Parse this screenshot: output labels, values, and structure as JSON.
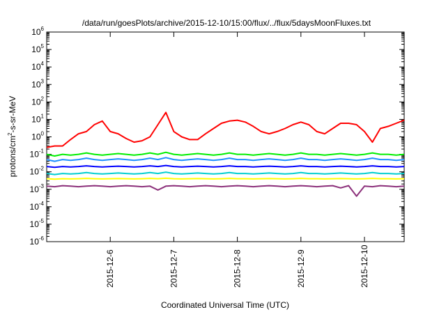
{
  "chart_data": {
    "type": "line",
    "title": "/data/run/goesPlots/archive/2015-12-10/15:00/flux/../flux/5daysMoonFluxes.txt",
    "xlabel": "Coordinated Universal Time (UTC)",
    "ylabel": {
      "prefix": "protons/cm",
      "superscript": "2",
      "suffix": "-s-sr-MeV"
    },
    "x_range": [
      "2015-12-05T00:00",
      "2015-12-10T15:00"
    ],
    "x_ticks": [
      "2015-12-6",
      "2015-12-7",
      "2015-12-8",
      "2015-12-9",
      "2015-12-10"
    ],
    "y_scale": "log",
    "ylim": [
      1e-06,
      1000000.0
    ],
    "y_ticks": [
      {
        "base": "10",
        "exp": "-6"
      },
      {
        "base": "10",
        "exp": "-5"
      },
      {
        "base": "10",
        "exp": "-4"
      },
      {
        "base": "10",
        "exp": "-3"
      },
      {
        "base": "10",
        "exp": "-2"
      },
      {
        "base": "10",
        "exp": "-1"
      },
      {
        "base": "10",
        "exp": "0"
      },
      {
        "base": "10",
        "exp": "1"
      },
      {
        "base": "10",
        "exp": "2"
      },
      {
        "base": "10",
        "exp": "3"
      },
      {
        "base": "10",
        "exp": "4"
      },
      {
        "base": "10",
        "exp": "5"
      },
      {
        "base": "10",
        "exp": "6"
      }
    ],
    "grid": false,
    "legend": "none",
    "x": [
      "2015-12-05T00:00",
      "2015-12-05T03:00",
      "2015-12-05T06:00",
      "2015-12-05T09:00",
      "2015-12-05T12:00",
      "2015-12-05T15:00",
      "2015-12-05T18:00",
      "2015-12-05T21:00",
      "2015-12-06T00:00",
      "2015-12-06T03:00",
      "2015-12-06T06:00",
      "2015-12-06T09:00",
      "2015-12-06T12:00",
      "2015-12-06T15:00",
      "2015-12-06T18:00",
      "2015-12-06T21:00",
      "2015-12-07T00:00",
      "2015-12-07T03:00",
      "2015-12-07T06:00",
      "2015-12-07T09:00",
      "2015-12-07T12:00",
      "2015-12-07T15:00",
      "2015-12-07T18:00",
      "2015-12-07T21:00",
      "2015-12-08T00:00",
      "2015-12-08T03:00",
      "2015-12-08T06:00",
      "2015-12-08T09:00",
      "2015-12-08T12:00",
      "2015-12-08T15:00",
      "2015-12-08T18:00",
      "2015-12-08T21:00",
      "2015-12-09T00:00",
      "2015-12-09T03:00",
      "2015-12-09T06:00",
      "2015-12-09T09:00",
      "2015-12-09T12:00",
      "2015-12-09T15:00",
      "2015-12-09T18:00",
      "2015-12-09T21:00",
      "2015-12-10T00:00",
      "2015-12-10T03:00",
      "2015-12-10T06:00",
      "2015-12-10T09:00",
      "2015-12-10T12:00",
      "2015-12-10T15:00"
    ],
    "series": [
      {
        "color": "#ff0000",
        "values": [
          0.25,
          0.3,
          0.3,
          0.7,
          1.5,
          2,
          5,
          8,
          2,
          1.5,
          0.8,
          0.5,
          0.6,
          1,
          5,
          25,
          2,
          1,
          0.7,
          0.7,
          1.5,
          3,
          6,
          8,
          9,
          7,
          4,
          2,
          1.5,
          2,
          3,
          5,
          7,
          5,
          2,
          1.5,
          3,
          6,
          6,
          5,
          2,
          0.5,
          3,
          4,
          6,
          9
        ]
      },
      {
        "color": "#00ee00",
        "values": [
          0.1,
          0.08,
          0.1,
          0.09,
          0.1,
          0.12,
          0.1,
          0.09,
          0.1,
          0.11,
          0.1,
          0.09,
          0.1,
          0.12,
          0.1,
          0.13,
          0.1,
          0.09,
          0.1,
          0.11,
          0.1,
          0.09,
          0.1,
          0.12,
          0.1,
          0.1,
          0.09,
          0.1,
          0.11,
          0.1,
          0.09,
          0.1,
          0.12,
          0.1,
          0.1,
          0.09,
          0.1,
          0.11,
          0.1,
          0.09,
          0.1,
          0.12,
          0.1,
          0.1,
          0.09,
          0.1
        ]
      },
      {
        "color": "#1e90ff",
        "values": [
          0.05,
          0.04,
          0.05,
          0.045,
          0.05,
          0.06,
          0.05,
          0.045,
          0.05,
          0.055,
          0.05,
          0.045,
          0.05,
          0.06,
          0.05,
          0.065,
          0.05,
          0.045,
          0.05,
          0.055,
          0.05,
          0.045,
          0.05,
          0.06,
          0.05,
          0.05,
          0.045,
          0.05,
          0.055,
          0.05,
          0.045,
          0.05,
          0.06,
          0.05,
          0.05,
          0.045,
          0.05,
          0.055,
          0.05,
          0.045,
          0.05,
          0.06,
          0.05,
          0.05,
          0.045,
          0.05
        ]
      },
      {
        "color": "#0000ff",
        "values": [
          0.02,
          0.018,
          0.02,
          0.019,
          0.02,
          0.022,
          0.02,
          0.019,
          0.02,
          0.021,
          0.02,
          0.019,
          0.02,
          0.022,
          0.02,
          0.023,
          0.02,
          0.019,
          0.02,
          0.021,
          0.02,
          0.019,
          0.02,
          0.022,
          0.02,
          0.02,
          0.019,
          0.02,
          0.021,
          0.02,
          0.019,
          0.02,
          0.022,
          0.02,
          0.02,
          0.019,
          0.02,
          0.021,
          0.02,
          0.019,
          0.02,
          0.022,
          0.02,
          0.02,
          0.019,
          0.02
        ]
      },
      {
        "color": "#00ced1",
        "values": [
          0.008,
          0.007,
          0.008,
          0.0075,
          0.008,
          0.009,
          0.008,
          0.0075,
          0.008,
          0.0085,
          0.008,
          0.0075,
          0.008,
          0.009,
          0.008,
          0.0095,
          0.008,
          0.0075,
          0.008,
          0.0085,
          0.008,
          0.0075,
          0.008,
          0.009,
          0.008,
          0.008,
          0.0075,
          0.008,
          0.0085,
          0.008,
          0.0075,
          0.008,
          0.009,
          0.008,
          0.008,
          0.0075,
          0.008,
          0.0085,
          0.008,
          0.0075,
          0.008,
          0.009,
          0.008,
          0.008,
          0.0075,
          0.008
        ]
      },
      {
        "color": "#ffff00",
        "values": [
          0.004,
          0.0038,
          0.004,
          0.0039,
          0.004,
          0.0042,
          0.004,
          0.0039,
          0.004,
          0.0041,
          0.004,
          0.0039,
          0.004,
          0.0042,
          0.004,
          0.0043,
          0.004,
          0.0039,
          0.004,
          0.0041,
          0.004,
          0.0039,
          0.004,
          0.0042,
          0.004,
          0.004,
          0.0039,
          0.004,
          0.0041,
          0.004,
          0.0039,
          0.004,
          0.0042,
          0.004,
          0.004,
          0.0039,
          0.004,
          0.0041,
          0.004,
          0.0039,
          0.004,
          0.0042,
          0.004,
          0.004,
          0.0039,
          0.004
        ]
      },
      {
        "color": "#8b2f7a",
        "values": [
          0.0015,
          0.0014,
          0.0016,
          0.0015,
          0.0014,
          0.0015,
          0.0016,
          0.0015,
          0.0014,
          0.0015,
          0.0016,
          0.0015,
          0.0014,
          0.0015,
          0.0009,
          0.0015,
          0.0016,
          0.0015,
          0.0014,
          0.0015,
          0.0016,
          0.0015,
          0.0014,
          0.0015,
          0.0016,
          0.0015,
          0.0014,
          0.0015,
          0.0016,
          0.0015,
          0.0014,
          0.0015,
          0.0016,
          0.0015,
          0.0014,
          0.0015,
          0.0016,
          0.0012,
          0.0016,
          0.0004,
          0.0015,
          0.0014,
          0.0016,
          0.0015,
          0.0014,
          0.0015
        ]
      }
    ]
  }
}
